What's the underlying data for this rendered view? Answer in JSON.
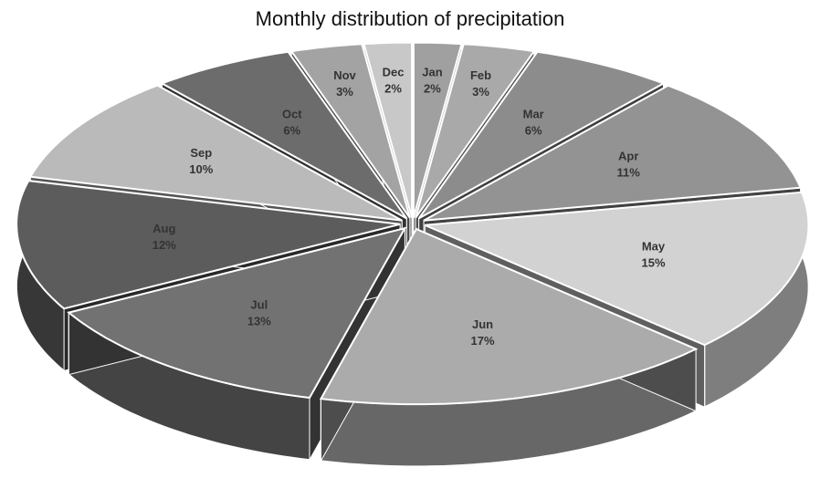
{
  "chart_data": {
    "type": "pie3d",
    "title": "Monthly distribution of precipitation",
    "categories": [
      "Jan",
      "Feb",
      "Mar",
      "Apr",
      "May",
      "Jun",
      "Jul",
      "Aug",
      "Sep",
      "Oct",
      "Nov",
      "Dec"
    ],
    "values": [
      2,
      3,
      6,
      11,
      15,
      17,
      13,
      12,
      10,
      6,
      3,
      2
    ],
    "value_labels": [
      "2%",
      "3%",
      "6%",
      "11%",
      "15%",
      "17%",
      "13%",
      "12%",
      "10%",
      "6%",
      "3%",
      "2%"
    ],
    "colors": [
      "#a0a0a0",
      "#a9a9a9",
      "#8c8c8c",
      "#939393",
      "#d2d2d2",
      "#ababab",
      "#727272",
      "#5c5c5c",
      "#bababa",
      "#6c6c6c",
      "#a3a3a3",
      "#c8c8c8"
    ]
  }
}
